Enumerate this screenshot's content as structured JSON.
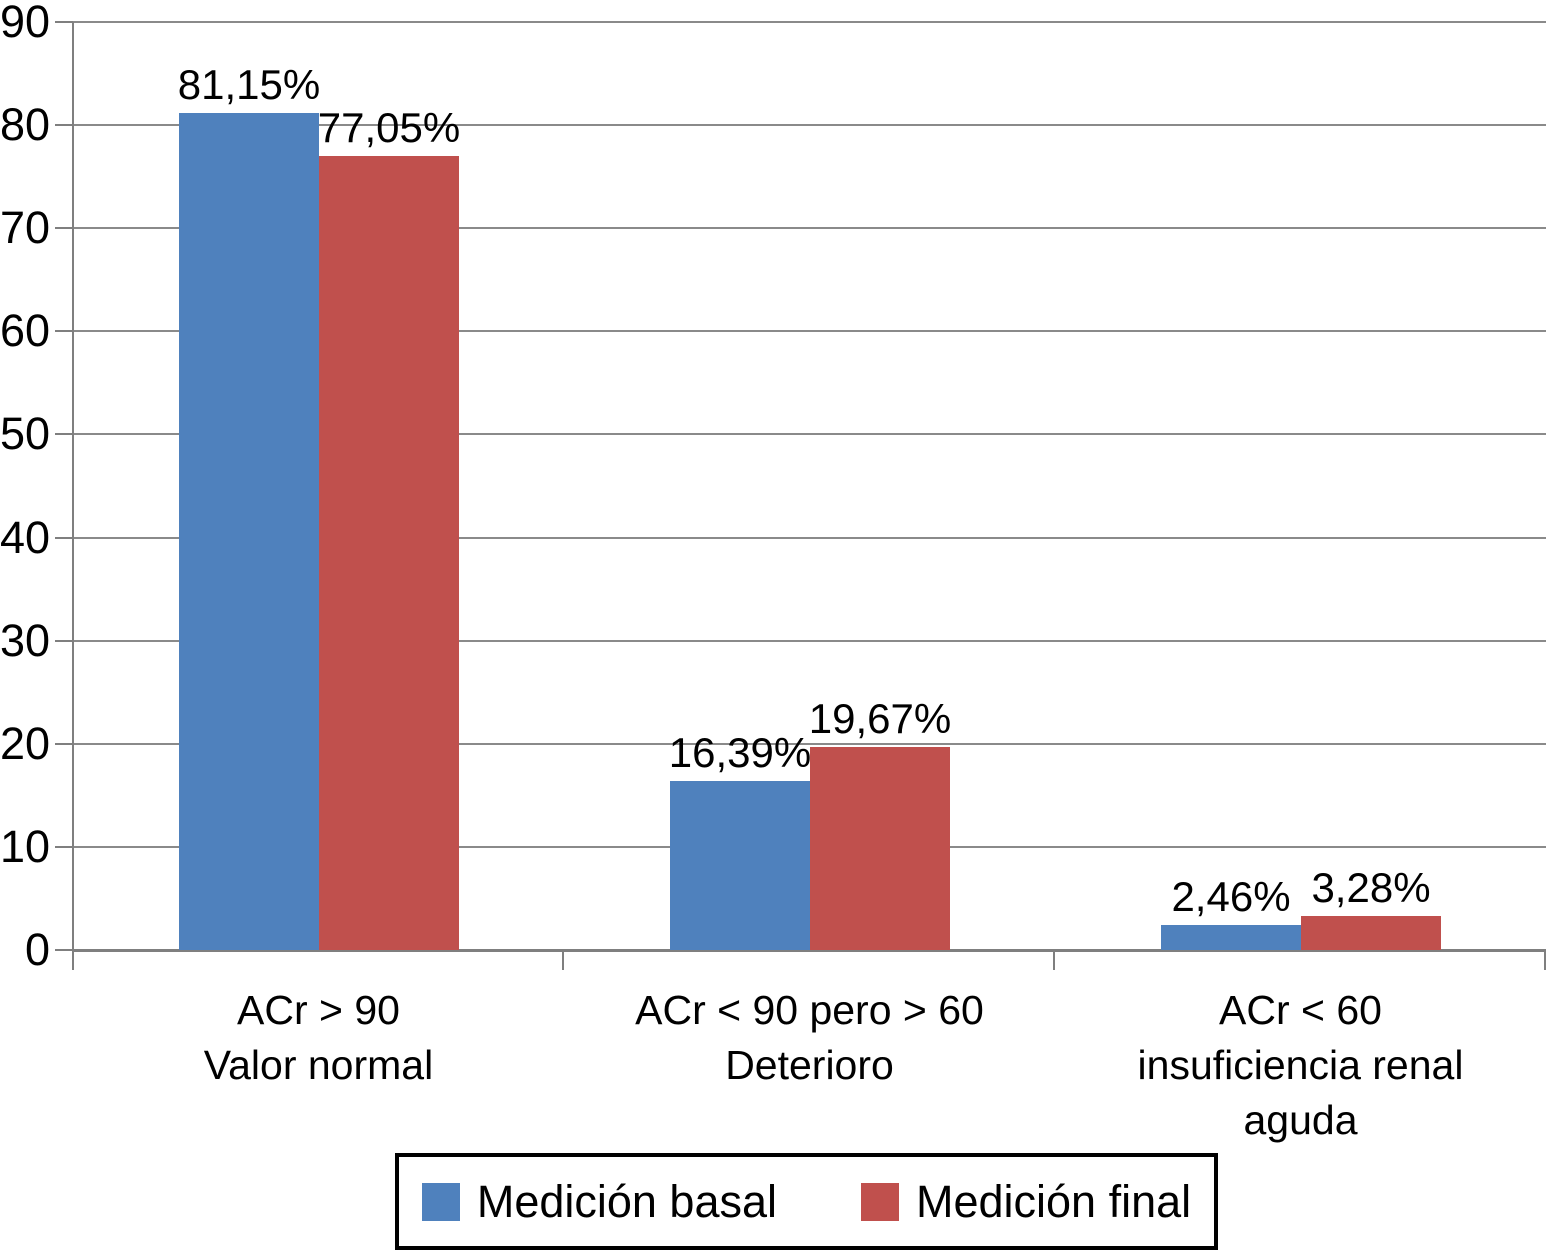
{
  "chart_data": {
    "type": "bar",
    "categories": [
      [
        "ACr > 90",
        "Valor normal"
      ],
      [
        "ACr < 90 pero > 60",
        "Deterioro"
      ],
      [
        "ACr < 60",
        "insuficiencia renal",
        "aguda"
      ]
    ],
    "series": [
      {
        "name": "Medición basal",
        "color": "#4F81BD",
        "values": [
          81.15,
          16.39,
          2.46
        ],
        "value_labels": [
          "81,15%",
          "16,39%",
          "2,46%"
        ]
      },
      {
        "name": "Medición final",
        "color": "#C0504D",
        "values": [
          77.05,
          19.67,
          3.28
        ],
        "value_labels": [
          "77,05%",
          "19,67%",
          "3,28%"
        ]
      }
    ],
    "ylim": [
      0,
      90
    ],
    "yticks": [
      0,
      10,
      20,
      30,
      40,
      50,
      60,
      70,
      80,
      90
    ],
    "grid": "horizontal",
    "legend_position": "bottom"
  },
  "styles": {
    "grid_color": "#8A8A8A",
    "axis_color": "#7F7F7F",
    "text_color": "#000000",
    "background": "#FFFFFF"
  }
}
